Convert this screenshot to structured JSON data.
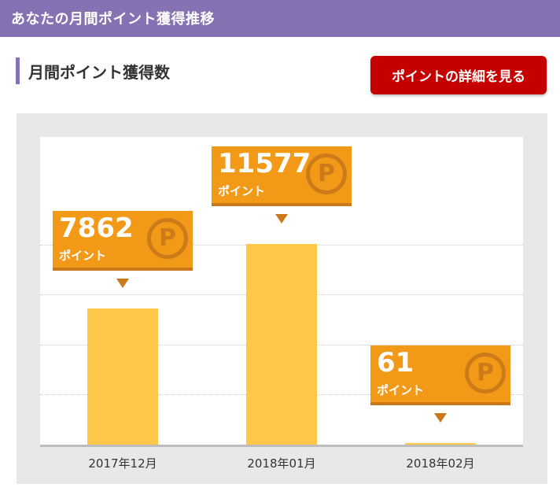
{
  "header": {
    "title": "あなたの月間ポイント獲得推移"
  },
  "section": {
    "title": "月間ポイント獲得数"
  },
  "details_button": {
    "label": "ポイントの詳細を見る"
  },
  "chart_data": {
    "type": "bar",
    "categories": [
      "2017年12月",
      "2018年01月",
      "2018年02月"
    ],
    "values": [
      7862,
      11577,
      61
    ],
    "value_labels": [
      "7862",
      "11577",
      "61"
    ],
    "unit_label": "ポイント",
    "grid": true,
    "ylim": [
      0,
      18000
    ],
    "colors": {
      "bar": "#ffc84b",
      "callout": "#f29a17",
      "callout_shadow": "#c9781a",
      "background": "#e8e8e8"
    }
  }
}
